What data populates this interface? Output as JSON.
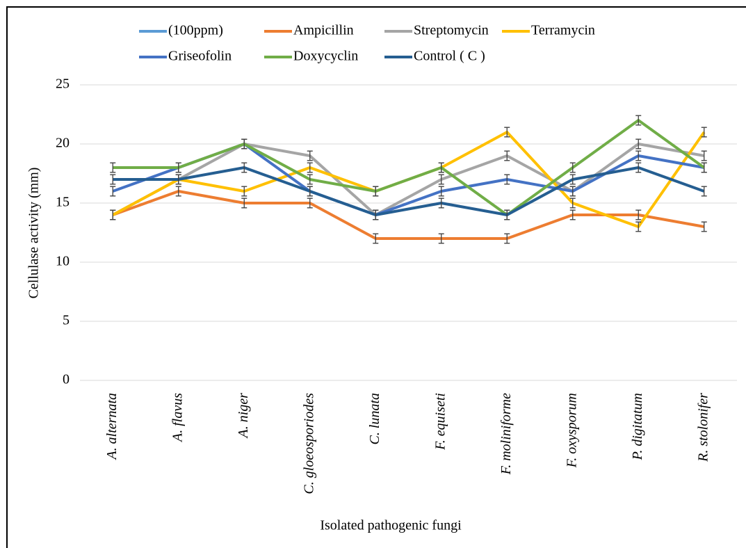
{
  "chart_data": {
    "type": "line",
    "y_label": "Cellulase activity (mm)",
    "x_label": "Isolated pathogenic fungi",
    "categories": [
      "A. alternata",
      "A. flavus",
      "A. niger",
      "C. gloeosporiodes",
      "C. lunata",
      "F. equiseti",
      "F. moliniforme",
      "F. oxysporum",
      "P. digitatum",
      "R. stolonifer"
    ],
    "series": [
      {
        "name": "(100ppm)",
        "color": "#5b9bd5",
        "values": [
          null,
          null,
          null,
          null,
          null,
          null,
          null,
          null,
          null,
          null
        ]
      },
      {
        "name": "Ampicillin",
        "color": "#ed7d31",
        "values": [
          14,
          16,
          15,
          15,
          12,
          12,
          12,
          14,
          14,
          13
        ],
        "error": 0.4
      },
      {
        "name": "Streptomycin",
        "color": "#a5a5a5",
        "values": [
          14,
          17,
          20,
          19,
          14,
          17,
          19,
          16,
          20,
          19
        ],
        "error": 0.4
      },
      {
        "name": "Terramycin",
        "color": "#ffc000",
        "values": [
          14,
          17,
          16,
          18,
          16,
          18,
          21,
          15,
          13,
          21
        ],
        "error": 0.4
      },
      {
        "name": "Griseofolin",
        "color": "#4472c4",
        "values": [
          16,
          18,
          20,
          16,
          14,
          16,
          17,
          16,
          19,
          18
        ],
        "error": 0.4
      },
      {
        "name": "Doxycyclin",
        "color": "#70ad47",
        "values": [
          18,
          18,
          20,
          17,
          16,
          18,
          14,
          18,
          22,
          18
        ],
        "error": 0.4
      },
      {
        "name": "Control ( C )",
        "color": "#255e91",
        "values": [
          17,
          17,
          18,
          16,
          14,
          15,
          14,
          17,
          18,
          16
        ],
        "error": 0.4
      }
    ],
    "ylim": [
      0,
      25
    ],
    "yticks": [
      0,
      5,
      10,
      15,
      20,
      25
    ],
    "grid": true,
    "legend": "top"
  }
}
